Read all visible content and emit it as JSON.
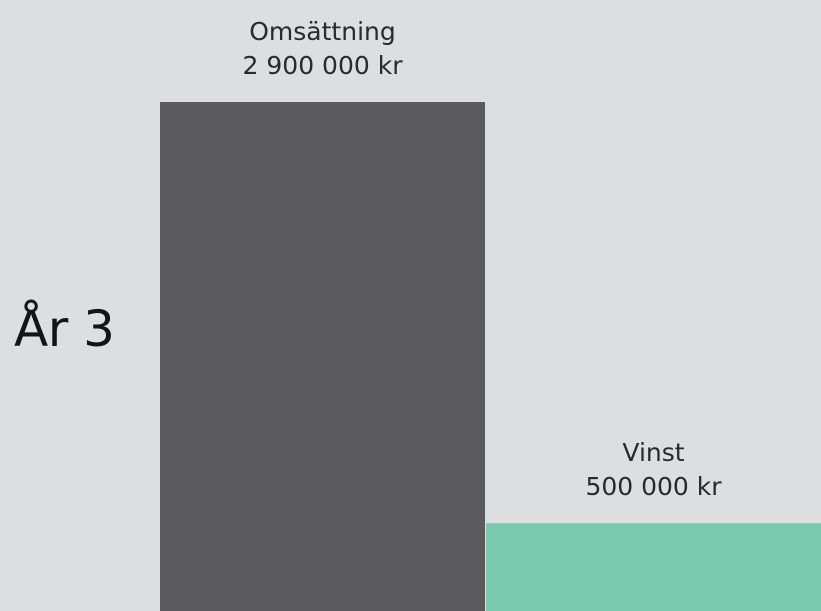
{
  "colors": {
    "background": "#dddee0",
    "revenue_bar": "#5b5b5d",
    "profit_bar": "#79c9ae",
    "text": "#141414"
  },
  "chart_data": {
    "type": "bar",
    "title": "",
    "row_label": "År 3",
    "categories": [
      "Omsättning",
      "Vinst"
    ],
    "values": [
      2900000,
      500000
    ],
    "value_labels": [
      "2 900 000 kr",
      "500 000 kr"
    ],
    "unit": "kr",
    "ylim": [
      0,
      2900000
    ],
    "grid": false,
    "legend": "none"
  }
}
